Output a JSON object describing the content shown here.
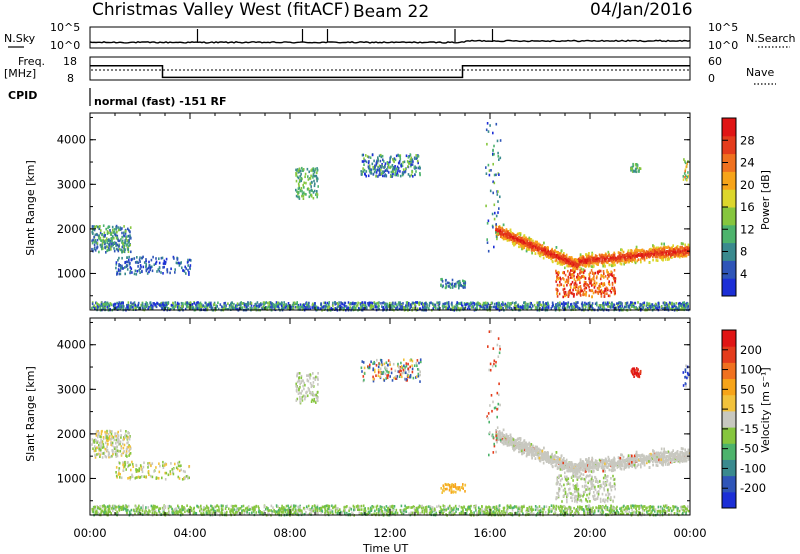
{
  "header": {
    "station": "Christmas Valley West (fitACF)",
    "beam": "Beam 22",
    "date": "04/Jan/2016"
  },
  "top_panels": {
    "nsky_label": "N.Sky",
    "nsky_ticks": [
      "10^5",
      "10^0"
    ],
    "nsearch_label": "N.Search",
    "nsearch_ticks": [
      "10^5",
      "10^0"
    ],
    "freq_label": "Freq.",
    "freq_unit": "[MHz]",
    "freq_ticks": [
      "18",
      "8"
    ],
    "nave_label": "Nave",
    "nave_ticks": [
      "60",
      "0"
    ],
    "cpid_label": "CPID",
    "cpid_text": "normal (fast) -151 RF"
  },
  "chart_data": [
    {
      "type": "heatmap",
      "title": "",
      "xlabel": "",
      "ylabel": "Slant Range [km]",
      "ylim": [
        180,
        4600
      ],
      "yticks": [
        "1000",
        "2000",
        "3000",
        "4000"
      ],
      "xticks": [
        "00:00",
        "04:00",
        "08:00",
        "12:00",
        "16:00",
        "20:00",
        "00:00"
      ],
      "colorbar": {
        "label": "Power [dB]",
        "range": [
          0,
          32
        ],
        "ticks": [
          "4",
          "8",
          "12",
          "16",
          "20",
          "24",
          "28"
        ],
        "colors": [
          "#1c2fd6",
          "#2f55b8",
          "#3a8a8e",
          "#4db36c",
          "#86c63e",
          "#dcd62c",
          "#f7a419",
          "#f0711f",
          "#e43c1c",
          "#e01515"
        ]
      }
    },
    {
      "type": "heatmap",
      "title": "",
      "xlabel": "Time UT",
      "ylabel": "Slant Range [km]",
      "ylim": [
        180,
        4600
      ],
      "yticks": [
        "1000",
        "2000",
        "3000",
        "4000"
      ],
      "xticks": [
        "00:00",
        "04:00",
        "08:00",
        "12:00",
        "16:00",
        "20:00",
        "00:00"
      ],
      "colorbar": {
        "label": "Velocity [m s⁻¹]",
        "range": [
          -250,
          250
        ],
        "ticks": [
          "200",
          "100",
          "50",
          "15",
          "-15",
          "-50",
          "-100",
          "-200"
        ],
        "colors": [
          "#1c2fd6",
          "#2f55b8",
          "#3a8a8e",
          "#4db36c",
          "#86c63e",
          "#c8c8c0",
          "#f2c23c",
          "#f7a419",
          "#f0711f",
          "#e43c1c",
          "#e01515"
        ]
      }
    }
  ]
}
